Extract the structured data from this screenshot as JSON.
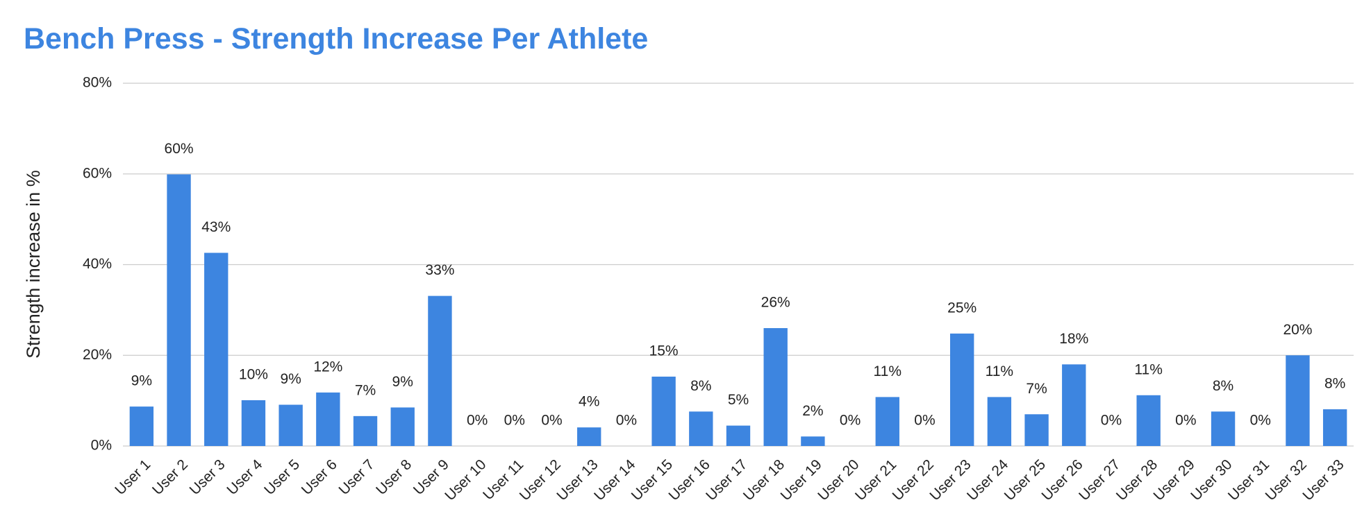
{
  "chart_data": {
    "type": "bar",
    "title": "Bench Press - Strength Increase Per Athlete",
    "y_label": "Strength increase in %",
    "categories": [
      "User 1",
      "User 2",
      "User 3",
      "User 4",
      "User 5",
      "User 6",
      "User 7",
      "User 8",
      "User 9",
      "User 10",
      "User 11",
      "User 12",
      "User 13",
      "User 14",
      "User 15",
      "User 16",
      "User 17",
      "User 18",
      "User 19",
      "User 20",
      "User 21",
      "User 22",
      "User 23",
      "User 24",
      "User 25",
      "User 26",
      "User 27",
      "User 28",
      "User 29",
      "User 30",
      "User 31",
      "User 32",
      "User 33"
    ],
    "values": [
      8.7,
      59.9,
      42.6,
      10.1,
      9.1,
      11.8,
      6.6,
      8.5,
      33.1,
      0,
      0,
      0,
      4.1,
      0,
      15.3,
      7.6,
      4.5,
      26.0,
      2.1,
      0,
      10.8,
      0,
      24.8,
      10.8,
      7.0,
      18.0,
      0,
      11.2,
      0,
      7.6,
      0,
      20.0,
      8.1
    ],
    "value_labels": [
      "9%",
      "60%",
      "43%",
      "10%",
      "9%",
      "12%",
      "7%",
      "9%",
      "33%",
      "0%",
      "0%",
      "0%",
      "4%",
      "0%",
      "15%",
      "8%",
      "5%",
      "26%",
      "2%",
      "0%",
      "11%",
      "0%",
      "25%",
      "11%",
      "7%",
      "18%",
      "0%",
      "11%",
      "0%",
      "8%",
      "0%",
      "20%",
      "8%"
    ],
    "color": "#3d85e0",
    "ylim": [
      0,
      80
    ],
    "yticks": [
      {
        "value": 0,
        "label": "0%"
      },
      {
        "value": 20,
        "label": "20%"
      },
      {
        "value": 40,
        "label": "40%"
      },
      {
        "value": 60,
        "label": "60%"
      },
      {
        "value": 80,
        "label": "80%"
      }
    ],
    "grid": true
  }
}
